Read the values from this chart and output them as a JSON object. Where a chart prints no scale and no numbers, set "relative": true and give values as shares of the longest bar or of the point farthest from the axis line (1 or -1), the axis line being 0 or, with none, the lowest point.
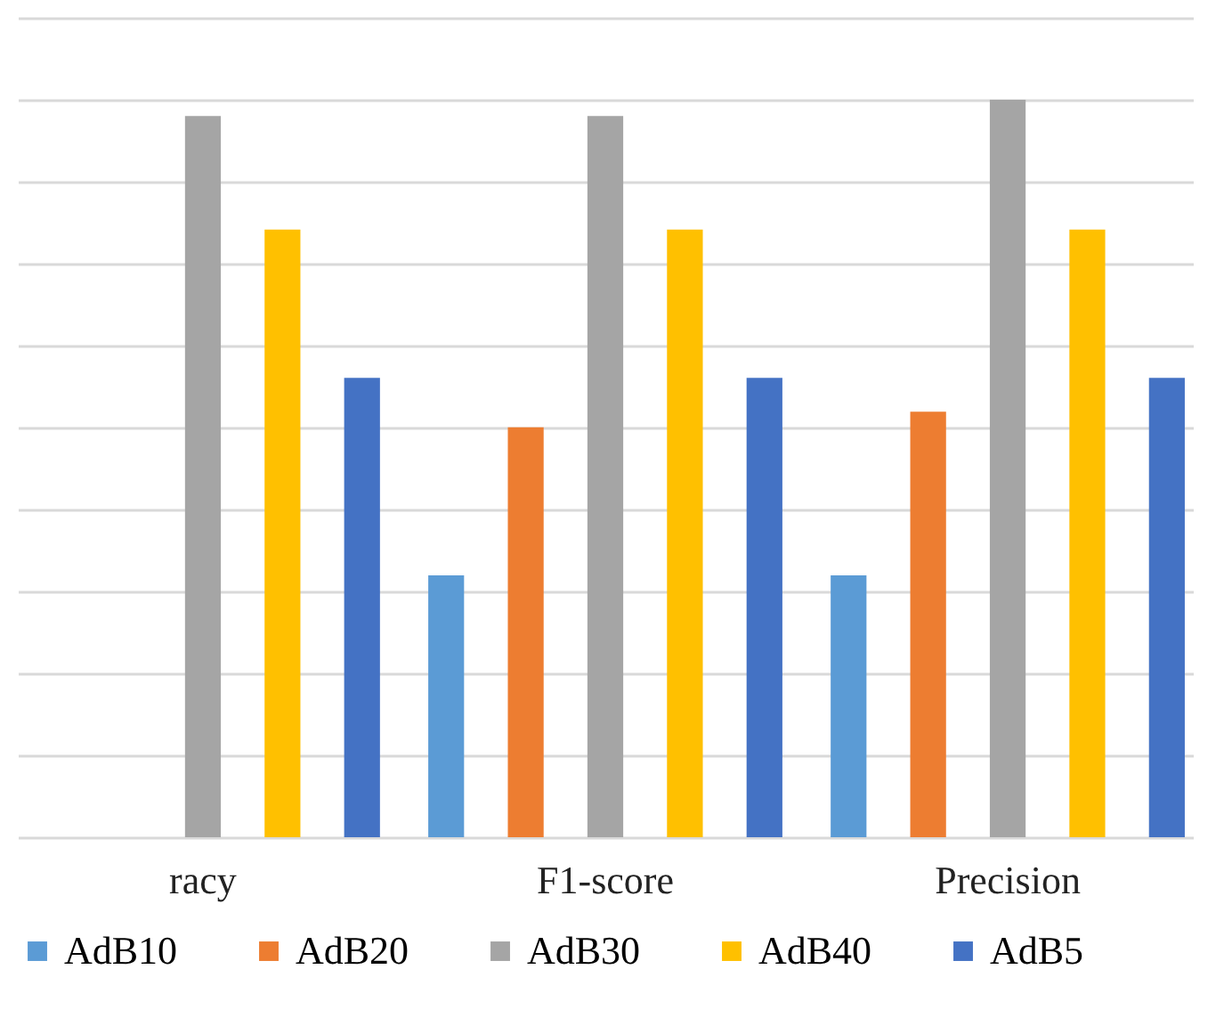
{
  "chart_data": {
    "type": "bar",
    "relative": true,
    "categories": [
      "racy",
      "F1-score",
      "Precision"
    ],
    "series": [
      {
        "name": "AdB10",
        "color": "#5b9bd5",
        "values": [
          null,
          0.355,
          0.355
        ]
      },
      {
        "name": "AdB20",
        "color": "#ed7d31",
        "values": [
          null,
          0.556,
          0.577
        ]
      },
      {
        "name": "AdB30",
        "color": "#a5a5a5",
        "values": [
          0.978,
          0.978,
          1
        ]
      },
      {
        "name": "AdB40",
        "color": "#ffc000",
        "values": [
          0.824,
          0.824,
          0.824
        ]
      },
      {
        "name": "AdB5",
        "color": "#4472c4",
        "values": [
          0.623,
          0.623,
          0.623
        ]
      }
    ],
    "grid": "y",
    "legend": "bottom"
  }
}
